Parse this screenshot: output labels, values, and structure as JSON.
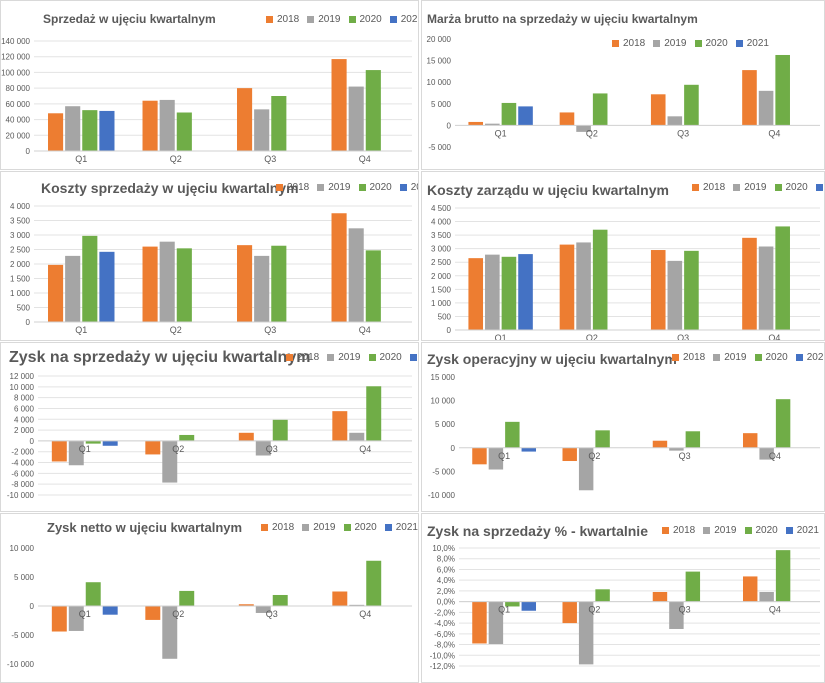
{
  "colors": {
    "2018": "#ED7D31",
    "2019": "#A5A5A5",
    "2020": "#70AD47",
    "2021": "#4472C4"
  },
  "legend": [
    "2018",
    "2019",
    "2020",
    "2021"
  ],
  "chart_data": [
    {
      "type": "bar",
      "title": "Sprzedaż w ujęciu kwartalnym",
      "categories": [
        "Q1",
        "Q2",
        "Q3",
        "Q4"
      ],
      "ylim": [
        0,
        140000
      ],
      "yticks": [
        0,
        20000,
        40000,
        60000,
        80000,
        100000,
        120000,
        140000
      ],
      "ytick_labels": [
        "0",
        "20 000",
        "40 000",
        "60 000",
        "80 000",
        "100 000",
        "120 000",
        "140 000"
      ],
      "grid": true,
      "series": [
        {
          "name": "2018",
          "values": [
            48000,
            64000,
            80000,
            117000
          ]
        },
        {
          "name": "2019",
          "values": [
            57000,
            65000,
            53000,
            82000
          ]
        },
        {
          "name": "2020",
          "values": [
            52000,
            49000,
            70000,
            103000
          ]
        },
        {
          "name": "2021",
          "values": [
            51000,
            null,
            null,
            null
          ]
        }
      ]
    },
    {
      "type": "bar",
      "title": "Marża brutto na sprzedaży w ujęciu kwartalnym",
      "categories": [
        "Q1",
        "Q2",
        "Q3",
        "Q4"
      ],
      "ylim": [
        -5000,
        20000
      ],
      "yticks": [
        -5000,
        0,
        5000,
        10000,
        15000,
        20000
      ],
      "ytick_labels": [
        "-5 000",
        "0",
        "5 000",
        "10 000",
        "15 000",
        "20 000"
      ],
      "grid": false,
      "series": [
        {
          "name": "2018",
          "values": [
            800,
            3000,
            7200,
            12800
          ]
        },
        {
          "name": "2019",
          "values": [
            400,
            -1500,
            2100,
            8000
          ]
        },
        {
          "name": "2020",
          "values": [
            5200,
            7400,
            9400,
            16300
          ]
        },
        {
          "name": "2021",
          "values": [
            4400,
            null,
            null,
            null
          ]
        }
      ]
    },
    {
      "type": "bar",
      "title": "Koszty sprzedaży w ujęciu kwartalnym",
      "categories": [
        "Q1",
        "Q2",
        "Q3",
        "Q4"
      ],
      "ylim": [
        0,
        4000
      ],
      "yticks": [
        0,
        500,
        1000,
        1500,
        2000,
        2500,
        3000,
        3500,
        4000
      ],
      "ytick_labels": [
        "0",
        "500",
        "1 000",
        "1 500",
        "2 000",
        "2 500",
        "3 000",
        "3 500",
        "4 000"
      ],
      "grid": true,
      "series": [
        {
          "name": "2018",
          "values": [
            1970,
            2600,
            2650,
            3750
          ]
        },
        {
          "name": "2019",
          "values": [
            2280,
            2770,
            2280,
            3230
          ]
        },
        {
          "name": "2020",
          "values": [
            2970,
            2540,
            2630,
            2470
          ]
        },
        {
          "name": "2021",
          "values": [
            2420,
            null,
            null,
            null
          ]
        }
      ]
    },
    {
      "type": "bar",
      "title": "Koszty zarządu w ujęciu kwartalnym",
      "categories": [
        "Q1",
        "Q2",
        "Q3",
        "Q4"
      ],
      "ylim": [
        0,
        4500
      ],
      "yticks": [
        0,
        500,
        1000,
        1500,
        2000,
        2500,
        3000,
        3500,
        4000,
        4500
      ],
      "ytick_labels": [
        "0",
        "500",
        "1 000",
        "1 500",
        "2 000",
        "2 500",
        "3 000",
        "3 500",
        "4 000",
        "4 500"
      ],
      "grid": true,
      "series": [
        {
          "name": "2018",
          "values": [
            2650,
            3150,
            2950,
            3400
          ]
        },
        {
          "name": "2019",
          "values": [
            2780,
            3230,
            2550,
            3080
          ]
        },
        {
          "name": "2020",
          "values": [
            2700,
            3700,
            2920,
            3820
          ]
        },
        {
          "name": "2021",
          "values": [
            2800,
            null,
            null,
            null
          ]
        }
      ]
    },
    {
      "type": "bar",
      "title": "Zysk na sprzedaży w ujęciu kwartalnym",
      "categories": [
        "Q1",
        "Q2",
        "Q3",
        "Q4"
      ],
      "ylim": [
        -10000,
        12000
      ],
      "yticks": [
        -10000,
        -8000,
        -6000,
        -4000,
        -2000,
        0,
        2000,
        4000,
        6000,
        8000,
        10000,
        12000
      ],
      "ytick_labels": [
        "-10 000",
        "-8 000",
        "-6 000",
        "-4 000",
        "-2 000",
        "0",
        "2 000",
        "4 000",
        "6 000",
        "8 000",
        "10 000",
        "12 000"
      ],
      "grid": true,
      "series": [
        {
          "name": "2018",
          "values": [
            -3800,
            -2500,
            1500,
            5500
          ]
        },
        {
          "name": "2019",
          "values": [
            -4500,
            -7700,
            -2700,
            1500
          ]
        },
        {
          "name": "2020",
          "values": [
            -500,
            1100,
            3900,
            10100
          ]
        },
        {
          "name": "2021",
          "values": [
            -900,
            null,
            null,
            null
          ]
        }
      ]
    },
    {
      "type": "bar",
      "title": "Zysk operacyjny w ujęciu kwartalnym",
      "categories": [
        "Q1",
        "Q2",
        "Q3",
        "Q4"
      ],
      "ylim": [
        -10000,
        15000
      ],
      "yticks": [
        -10000,
        -5000,
        0,
        5000,
        10000,
        15000
      ],
      "ytick_labels": [
        "-10 000",
        "-5 000",
        "0",
        "5 000",
        "10 000",
        "15 000"
      ],
      "grid": false,
      "series": [
        {
          "name": "2018",
          "values": [
            -3500,
            -2800,
            1500,
            3100
          ]
        },
        {
          "name": "2019",
          "values": [
            -4600,
            -9000,
            -600,
            -2500
          ]
        },
        {
          "name": "2020",
          "values": [
            5500,
            3700,
            3500,
            10300
          ]
        },
        {
          "name": "2021",
          "values": [
            -800,
            null,
            null,
            null
          ]
        }
      ]
    },
    {
      "type": "bar",
      "title": "Zysk netto w ujęciu kwartalnym",
      "categories": [
        "Q1",
        "Q2",
        "Q3",
        "Q4"
      ],
      "ylim": [
        -10000,
        10000
      ],
      "yticks": [
        -10000,
        -5000,
        0,
        5000,
        10000
      ],
      "ytick_labels": [
        "-10 000",
        "-5 000",
        "0",
        "5 000",
        "10 000"
      ],
      "grid": false,
      "series": [
        {
          "name": "2018",
          "values": [
            -4400,
            -2400,
            300,
            2500
          ]
        },
        {
          "name": "2019",
          "values": [
            -4300,
            -9100,
            -1200,
            200
          ]
        },
        {
          "name": "2020",
          "values": [
            4100,
            2600,
            1900,
            7800
          ]
        },
        {
          "name": "2021",
          "values": [
            -1500,
            null,
            null,
            null
          ]
        }
      ]
    },
    {
      "type": "bar",
      "title": "Zysk na sprzedaży % - kwartalnie",
      "categories": [
        "Q1",
        "Q2",
        "Q3",
        "Q4"
      ],
      "ylim": [
        -12,
        10
      ],
      "yticks": [
        -12,
        -10,
        -8,
        -6,
        -4,
        -2,
        0,
        2,
        4,
        6,
        8,
        10
      ],
      "ytick_labels": [
        "-12,0%",
        "-10,0%",
        "-8,0%",
        "-6,0%",
        "-4,0%",
        "-2,0%",
        "0,0%",
        "2,0%",
        "4,0%",
        "6,0%",
        "8,0%",
        "10,0%"
      ],
      "grid": true,
      "series": [
        {
          "name": "2018",
          "values": [
            -7.8,
            -4.0,
            1.8,
            4.7
          ]
        },
        {
          "name": "2019",
          "values": [
            -7.9,
            -11.7,
            -5.1,
            1.8
          ]
        },
        {
          "name": "2020",
          "values": [
            -0.9,
            2.3,
            5.6,
            9.6
          ]
        },
        {
          "name": "2021",
          "values": [
            -1.7,
            null,
            null,
            null
          ]
        }
      ]
    }
  ]
}
